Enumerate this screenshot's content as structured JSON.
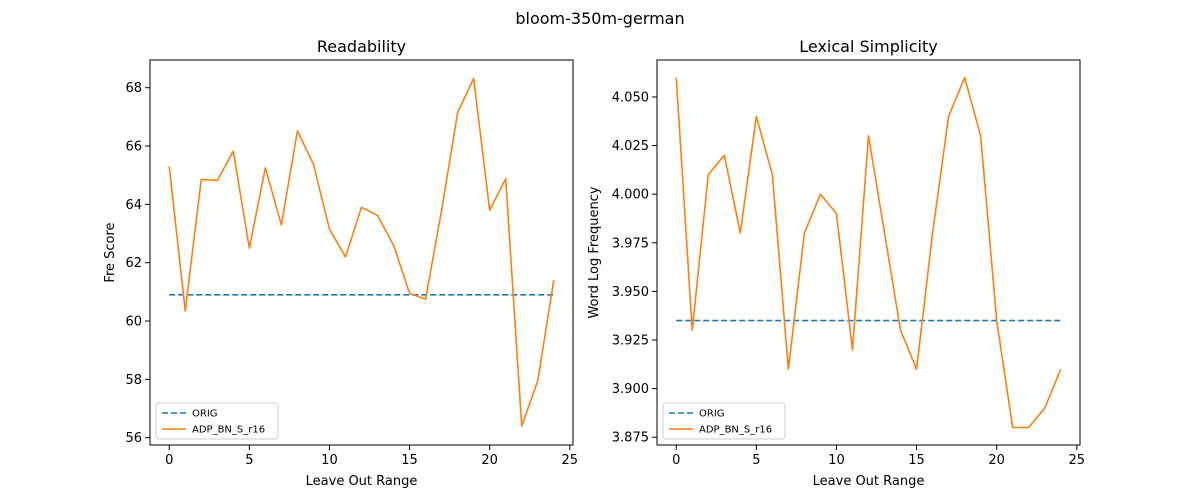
{
  "suptitle": "bloom-350m-german",
  "colors": {
    "orig": "#1f77b4",
    "adp": "#ff7f0e"
  },
  "chart_data": [
    {
      "type": "line",
      "title": "Readability",
      "xlabel": "Leave Out Range",
      "ylabel": "Fre Score",
      "xlim": [
        -1.2,
        25.2
      ],
      "ylim": [
        55.75,
        68.95
      ],
      "xticks": [
        0,
        5,
        10,
        15,
        20,
        25
      ],
      "yticks": [
        56,
        58,
        60,
        62,
        64,
        66,
        68
      ],
      "ytick_labels": [
        "56",
        "58",
        "60",
        "62",
        "64",
        "66",
        "68"
      ],
      "legend": "lower-left",
      "series": [
        {
          "name": "ORIG",
          "style": "dashed",
          "color": "#1f77b4",
          "x": [
            0,
            24
          ],
          "y": [
            60.9,
            60.9
          ]
        },
        {
          "name": "ADP_BN_S_r16",
          "style": "solid",
          "color": "#ff7f0e",
          "x": [
            0,
            1,
            2,
            3,
            4,
            5,
            6,
            7,
            8,
            9,
            10,
            11,
            12,
            13,
            14,
            15,
            16,
            17,
            18,
            19,
            20,
            21,
            22,
            23,
            24
          ],
          "y": [
            65.3,
            60.35,
            64.85,
            64.82,
            65.82,
            62.5,
            65.25,
            63.3,
            66.52,
            65.38,
            63.15,
            62.2,
            63.9,
            63.62,
            62.6,
            60.95,
            60.75,
            63.8,
            67.15,
            68.32,
            63.8,
            64.88,
            56.4,
            57.95,
            61.4
          ]
        }
      ]
    },
    {
      "type": "line",
      "title": "Lexical Simplicity",
      "xlabel": "Leave Out Range",
      "ylabel": "Word Log Frequency",
      "xlim": [
        -1.2,
        25.2
      ],
      "ylim": [
        3.871,
        4.069
      ],
      "xticks": [
        0,
        5,
        10,
        15,
        20,
        25
      ],
      "yticks": [
        3.875,
        3.9,
        3.925,
        3.95,
        3.975,
        4.0,
        4.025,
        4.05
      ],
      "ytick_labels": [
        "3.875",
        "3.900",
        "3.925",
        "3.950",
        "3.975",
        "4.000",
        "4.025",
        "4.050"
      ],
      "legend": "lower-left",
      "series": [
        {
          "name": "ORIG",
          "style": "dashed",
          "color": "#1f77b4",
          "x": [
            0,
            24
          ],
          "y": [
            3.935,
            3.935
          ]
        },
        {
          "name": "ADP_BN_S_r16",
          "style": "solid",
          "color": "#ff7f0e",
          "x": [
            0,
            1,
            2,
            3,
            4,
            5,
            6,
            7,
            8,
            9,
            10,
            11,
            12,
            13,
            14,
            15,
            16,
            17,
            18,
            19,
            20,
            21,
            22,
            23,
            24
          ],
          "y": [
            4.06,
            3.93,
            4.01,
            4.02,
            3.98,
            4.04,
            4.01,
            3.91,
            3.98,
            4.0,
            3.99,
            3.92,
            4.03,
            3.98,
            3.93,
            3.91,
            3.98,
            4.04,
            4.06,
            4.03,
            3.935,
            3.88,
            3.88,
            3.89,
            3.91
          ]
        }
      ]
    }
  ]
}
